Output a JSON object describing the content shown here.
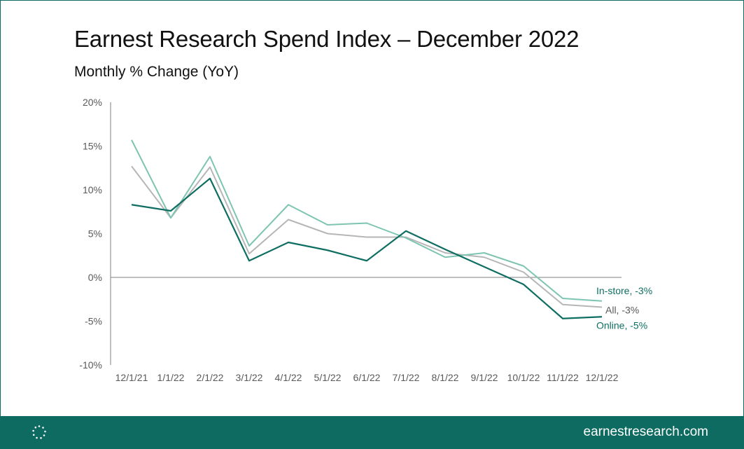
{
  "header": {
    "title": "Earnest Research Spend Index – December 2022",
    "subtitle": "Monthly % Change (YoY)"
  },
  "footer": {
    "url": "earnestresearch.com",
    "logo_icon": "dotted-circle-logo-icon"
  },
  "colors": {
    "brand": "#0d6b61",
    "online": "#0f6e62",
    "instore": "#7dc4b1",
    "all": "#b6b6b6",
    "axis": "#7f7f7f",
    "tick_text": "#595959"
  },
  "chart_data": {
    "type": "line",
    "categories": [
      "12/1/21",
      "1/1/22",
      "2/1/22",
      "3/1/22",
      "4/1/22",
      "5/1/22",
      "6/1/22",
      "7/1/22",
      "8/1/22",
      "9/1/22",
      "10/1/22",
      "11/1/22",
      "12/1/22"
    ],
    "y_ticks": [
      20,
      15,
      10,
      5,
      0,
      -5,
      -10
    ],
    "y_tick_labels": [
      "20%",
      "15%",
      "10%",
      "5%",
      "0%",
      "-5%",
      "-10%"
    ],
    "ylim": [
      -10,
      20
    ],
    "grid": false,
    "series": [
      {
        "key": "all",
        "values": [
          12.7,
          6.8,
          12.6,
          2.7,
          6.6,
          5.0,
          4.6,
          4.6,
          2.8,
          2.3,
          0.6,
          -3.1,
          -3.4
        ],
        "end_label": "All, -3%"
      },
      {
        "key": "instore",
        "values": [
          15.7,
          6.8,
          13.8,
          3.6,
          8.3,
          6.0,
          6.2,
          4.5,
          2.3,
          2.8,
          1.3,
          -2.4,
          -2.7
        ],
        "end_label": "In-store, -3%"
      },
      {
        "key": "online",
        "values": [
          8.3,
          7.6,
          11.3,
          1.9,
          4.0,
          3.1,
          1.9,
          5.3,
          3.2,
          1.2,
          -0.8,
          -4.7,
          -4.5
        ],
        "end_label": "Online, -5%"
      }
    ]
  }
}
